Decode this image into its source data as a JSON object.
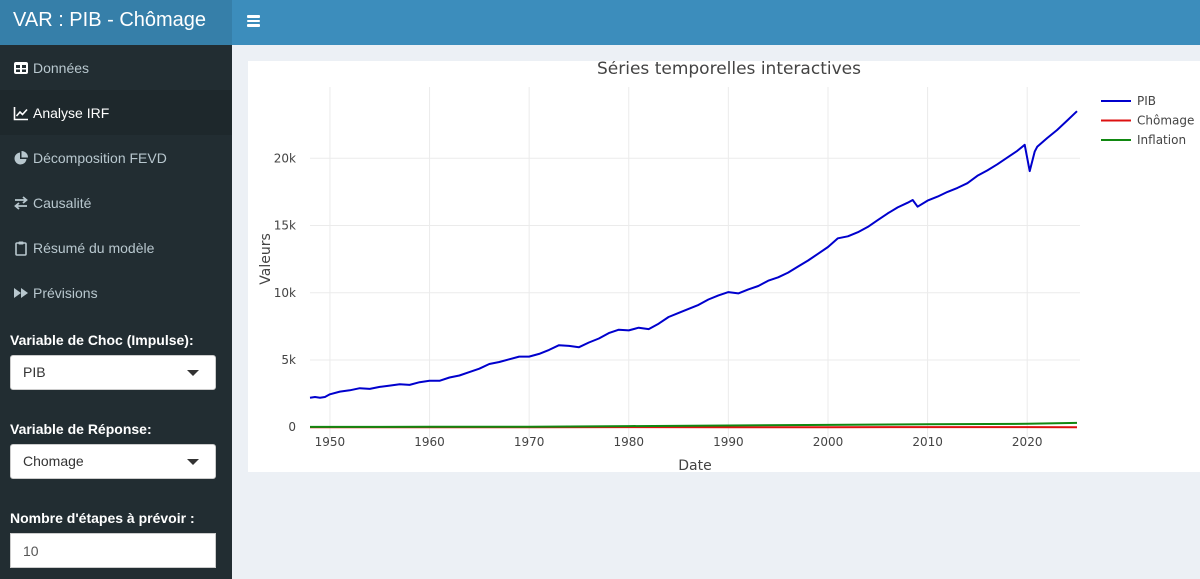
{
  "app": {
    "title": "VAR : PIB - Chômage"
  },
  "header": {
    "toggle_icon": "hamburger-icon"
  },
  "sidebar": {
    "menu": [
      {
        "label": "Données",
        "icon": "table-icon"
      },
      {
        "label": "Analyse IRF",
        "icon": "line-chart-icon"
      },
      {
        "label": "Décomposition FEVD",
        "icon": "pie-chart-icon"
      },
      {
        "label": "Causalité",
        "icon": "exchange-icon"
      },
      {
        "label": "Résumé du modèle",
        "icon": "clipboard-icon"
      },
      {
        "label": "Prévisions",
        "icon": "fast-forward-icon"
      }
    ],
    "active_index": 1,
    "controls": {
      "impulse_label": "Variable de Choc (Impulse):",
      "impulse_value": "PIB",
      "response_label": "Variable de Réponse:",
      "response_value": "Chomage",
      "steps_label": "Nombre d'étapes à prévoir :",
      "steps_value": "10"
    }
  },
  "colors": {
    "pib": "#0000cd",
    "chomage": "#dd1111",
    "inflation": "#118811",
    "header": "#3c8dbc",
    "brand": "#367fa9",
    "sidebar": "#222d32"
  },
  "chart_data": {
    "type": "line",
    "title": "Séries temporelles interactives",
    "xlabel": "Date",
    "ylabel": "Valeurs",
    "xlim": [
      1948,
      2025.3
    ],
    "ylim": [
      -800,
      25300
    ],
    "xticks": [
      1950,
      1960,
      1970,
      1980,
      1990,
      2000,
      2010,
      2020
    ],
    "xtick_labels": [
      "1950",
      "1960",
      "1970",
      "1980",
      "1990",
      "2000",
      "2010",
      "2020"
    ],
    "yticks": [
      0,
      5000,
      10000,
      15000,
      20000
    ],
    "ytick_labels": [
      "0",
      "5k",
      "10k",
      "15k",
      "20k"
    ],
    "grid": true,
    "legend_position": "top-right",
    "series": [
      {
        "name": "PIB",
        "x": [
          1948,
          1948.5,
          1949,
          1949.5,
          1950,
          1951,
          1952,
          1953,
          1954,
          1955,
          1956,
          1957,
          1958,
          1959,
          1960,
          1961,
          1962,
          1963,
          1964,
          1965,
          1966,
          1967,
          1968,
          1969,
          1970,
          1971,
          1972,
          1973,
          1974,
          1975,
          1976,
          1977,
          1978,
          1979,
          1980,
          1981,
          1982,
          1983,
          1984,
          1985,
          1986,
          1987,
          1988,
          1989,
          1990,
          1991,
          1992,
          1993,
          1994,
          1995,
          1996,
          1997,
          1998,
          1999,
          2000,
          2001,
          2002,
          2003,
          2004,
          2005,
          2006,
          2007,
          2008,
          2008.5,
          2009,
          2010,
          2011,
          2012,
          2013,
          2014,
          2015,
          2016,
          2017,
          2018,
          2019,
          2019.75,
          2020.25,
          2020.75,
          2021,
          2022,
          2023,
          2024,
          2025
        ],
        "values": [
          2200,
          2250,
          2200,
          2250,
          2450,
          2650,
          2750,
          2900,
          2850,
          3000,
          3100,
          3200,
          3150,
          3350,
          3450,
          3450,
          3700,
          3850,
          4100,
          4350,
          4700,
          4850,
          5050,
          5250,
          5250,
          5450,
          5750,
          6100,
          6050,
          5950,
          6300,
          6600,
          7000,
          7250,
          7200,
          7400,
          7300,
          7700,
          8200,
          8500,
          8800,
          9100,
          9500,
          9800,
          10050,
          9950,
          10250,
          10500,
          10900,
          11150,
          11500,
          11950,
          12400,
          12900,
          13400,
          14050,
          14200,
          14500,
          14900,
          15400,
          15900,
          16350,
          16700,
          16900,
          16400,
          16850,
          17150,
          17500,
          17800,
          18150,
          18700,
          19100,
          19550,
          20050,
          20550,
          21000,
          19050,
          20500,
          20850,
          21500,
          22100,
          22800,
          23500
        ]
      },
      {
        "name": "Chômage",
        "x": [
          1948,
          1960,
          1970,
          1980,
          1990,
          2000,
          2010,
          2020,
          2025
        ],
        "values": [
          4,
          6,
          5,
          7,
          6,
          4,
          9,
          8,
          4
        ]
      },
      {
        "name": "Inflation",
        "x": [
          1948,
          1960,
          1970,
          1980,
          1990,
          2000,
          2010,
          2020,
          2025
        ],
        "values": [
          24,
          30,
          39,
          82,
          131,
          172,
          218,
          259,
          320
        ]
      }
    ]
  }
}
